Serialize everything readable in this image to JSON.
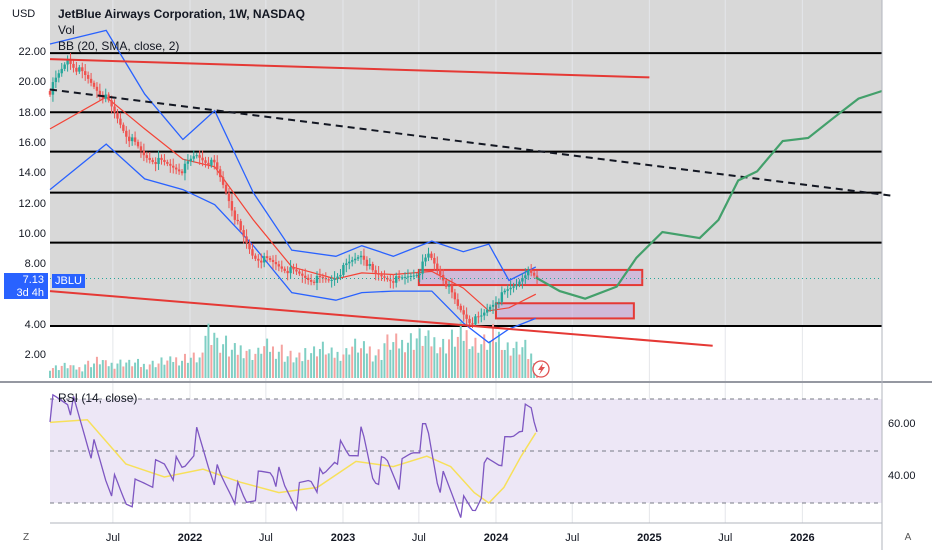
{
  "header": {
    "title": "JetBlue Airways Corporation, 1W, NASDAQ",
    "indicator_vol": "Vol",
    "indicator_bb": "BB (20, SMA, close, 2)",
    "rsi_label": "RSI (14, close)"
  },
  "currency": "USD",
  "price_tag": {
    "price": "7.13",
    "symbol": "JBLU",
    "countdown": "3d 4h"
  },
  "corners": {
    "bottom_left": "Z",
    "bottom_right": "A"
  },
  "colors": {
    "price_panel_bg": "#d8d8d8",
    "candle_up": "#26a69a",
    "candle_down": "#ef5350",
    "bollinger": "#2962ff",
    "sma": "#f44336",
    "rsi_line": "#7e57c2",
    "rsi_ma": "#f7e05a",
    "projection": "#43a06b",
    "trendline": "#e53935",
    "accent": "#2962ff"
  },
  "chart_data": [
    {
      "type": "candlestick",
      "title": "JetBlue Airways Corporation, 1W, NASDAQ",
      "ylabel": "USD",
      "y_ticks": [
        "22.00",
        "20.00",
        "18.00",
        "16.00",
        "14.00",
        "12.00",
        "10.00",
        "8.00",
        "4.00",
        "2.00"
      ],
      "x_ticks": [
        "Jul",
        "2022",
        "Jul",
        "2023",
        "Jul",
        "2024",
        "Jul",
        "2025",
        "Jul",
        "2026"
      ],
      "ylim": [
        0.4,
        23.5
      ],
      "overlays": [
        "Bollinger Bands (20, SMA, 2)",
        "Volume"
      ],
      "horizontal_levels": [
        22.0,
        18.1,
        15.5,
        12.8,
        9.5,
        4.0
      ],
      "last_price": 7.13,
      "close_path": [
        [
          "2021-02-01",
          19.5
        ],
        [
          "2021-03-15",
          21.6
        ],
        [
          "2021-05-01",
          20.3
        ],
        [
          "2021-06-15",
          19.0
        ],
        [
          "2021-08-01",
          16.7
        ],
        [
          "2021-09-15",
          15.2
        ],
        [
          "2021-11-01",
          14.7
        ],
        [
          "2021-12-15",
          14.3
        ],
        [
          "2022-01-15",
          15.3
        ],
        [
          "2022-03-01",
          14.6
        ],
        [
          "2022-04-01",
          12.6
        ],
        [
          "2022-05-01",
          10.2
        ],
        [
          "2022-06-01",
          8.6
        ],
        [
          "2022-07-15",
          8.2
        ],
        [
          "2022-09-01",
          7.6
        ],
        [
          "2022-10-15",
          7.1
        ],
        [
          "2022-12-01",
          7.0
        ],
        [
          "2023-01-15",
          8.1
        ],
        [
          "2023-02-15",
          8.8
        ],
        [
          "2023-03-15",
          7.4
        ],
        [
          "2023-04-15",
          7.2
        ],
        [
          "2023-05-15",
          7.0
        ],
        [
          "2023-07-01",
          7.6
        ],
        [
          "2023-07-25",
          8.7
        ],
        [
          "2023-09-01",
          7.0
        ],
        [
          "2023-10-01",
          5.3
        ],
        [
          "2023-11-01",
          4.3
        ],
        [
          "2023-11-25",
          4.5
        ],
        [
          "2023-12-20",
          5.4
        ],
        [
          "2024-01-20",
          6.1
        ],
        [
          "2024-02-20",
          6.8
        ],
        [
          "2024-03-10",
          7.6
        ],
        [
          "2024-04-05",
          7.13
        ]
      ],
      "bollinger": {
        "upper": [
          [
            "2021-02-01",
            22.6
          ],
          [
            "2021-06-15",
            23.5
          ],
          [
            "2021-09-15",
            19.3
          ],
          [
            "2021-12-15",
            16.3
          ],
          [
            "2022-03-01",
            18.2
          ],
          [
            "2022-06-01",
            12.8
          ],
          [
            "2022-09-01",
            9.0
          ],
          [
            "2022-12-15",
            8.6
          ],
          [
            "2023-02-15",
            9.3
          ],
          [
            "2023-05-01",
            8.6
          ],
          [
            "2023-08-01",
            9.6
          ],
          [
            "2023-10-15",
            8.9
          ],
          [
            "2023-12-15",
            9.4
          ],
          [
            "2024-02-01",
            7.0
          ],
          [
            "2024-04-05",
            7.9
          ]
        ],
        "lower": [
          [
            "2021-02-01",
            13.0
          ],
          [
            "2021-06-15",
            16.0
          ],
          [
            "2021-09-15",
            13.7
          ],
          [
            "2021-12-15",
            13.0
          ],
          [
            "2022-03-01",
            12.0
          ],
          [
            "2022-06-01",
            9.3
          ],
          [
            "2022-09-01",
            6.2
          ],
          [
            "2022-12-15",
            5.7
          ],
          [
            "2023-02-15",
            6.2
          ],
          [
            "2023-05-01",
            6.3
          ],
          [
            "2023-08-01",
            6.3
          ],
          [
            "2023-10-15",
            4.2
          ],
          [
            "2023-12-15",
            2.9
          ],
          [
            "2024-02-01",
            3.8
          ],
          [
            "2024-04-05",
            4.5
          ]
        ],
        "basis": [
          [
            "2021-02-01",
            17.0
          ],
          [
            "2021-06-15",
            19.1
          ],
          [
            "2021-09-15",
            17.0
          ],
          [
            "2021-12-15",
            15.0
          ],
          [
            "2022-03-01",
            14.5
          ],
          [
            "2022-06-01",
            11.0
          ],
          [
            "2022-09-01",
            7.9
          ],
          [
            "2022-12-15",
            7.1
          ],
          [
            "2023-02-15",
            7.5
          ],
          [
            "2023-05-01",
            7.4
          ],
          [
            "2023-08-01",
            7.6
          ],
          [
            "2023-10-15",
            6.5
          ],
          [
            "2023-12-15",
            5.0
          ],
          [
            "2024-02-01",
            5.2
          ],
          [
            "2024-04-05",
            6.1
          ]
        ]
      },
      "trendlines": [
        {
          "style": "solid",
          "color": "#e53935",
          "from": [
            "2021-02-01",
            21.6
          ],
          "to": [
            "2025-01-01",
            20.4
          ]
        },
        {
          "style": "dashed",
          "color": "#131722",
          "from": [
            "2021-02-01",
            19.6
          ],
          "to": [
            "2026-08-01",
            12.6
          ]
        },
        {
          "style": "solid",
          "color": "#e53935",
          "from": [
            "2021-02-01",
            6.3
          ],
          "to": [
            "2025-06-01",
            2.7
          ]
        }
      ],
      "zones": [
        {
          "from": [
            "2023-07-01",
            7.7
          ],
          "to": [
            "2024-12-15",
            6.7
          ]
        },
        {
          "from": [
            "2024-01-01",
            5.5
          ],
          "to": [
            "2024-11-25",
            4.5
          ]
        }
      ],
      "projection_path": [
        [
          "2024-04-05",
          7.2
        ],
        [
          "2024-06-01",
          6.3
        ],
        [
          "2024-08-01",
          5.8
        ],
        [
          "2024-10-15",
          6.6
        ],
        [
          "2024-12-01",
          8.5
        ],
        [
          "2025-02-01",
          10.2
        ],
        [
          "2025-05-01",
          9.8
        ],
        [
          "2025-06-15",
          11.0
        ],
        [
          "2025-08-01",
          13.6
        ],
        [
          "2025-09-15",
          14.2
        ],
        [
          "2025-11-15",
          16.2
        ],
        [
          "2026-01-15",
          16.4
        ],
        [
          "2026-03-15",
          17.7
        ],
        [
          "2026-05-15",
          19.0
        ],
        [
          "2026-07-10",
          19.5
        ]
      ],
      "volume_relative": [
        0.22,
        0.25,
        0.2,
        0.3,
        0.35,
        0.28,
        0.32,
        0.3,
        0.26,
        0.3,
        0.34,
        0.38,
        0.42,
        0.4,
        1.0,
        0.7,
        0.55,
        0.6,
        0.5,
        0.62,
        0.58,
        0.45,
        0.4,
        0.55,
        0.6,
        0.48,
        0.52,
        0.65,
        0.58,
        0.5,
        0.72,
        0.7,
        0.78,
        0.82,
        0.75,
        0.68,
        0.8,
        0.88,
        0.7,
        0.72,
        0.85,
        0.62,
        0.6,
        0.45,
        0.3
      ]
    },
    {
      "type": "line",
      "title": "RSI (14, close)",
      "y_ticks": [
        "60.00",
        "40.00"
      ],
      "ylim": [
        25,
        75
      ],
      "levels": [
        70,
        50,
        30
      ],
      "rsi": [
        [
          "2021-02-01",
          66
        ],
        [
          "2021-03-15",
          71
        ],
        [
          "2021-05-01",
          55
        ],
        [
          "2021-06-15",
          40
        ],
        [
          "2021-08-01",
          31
        ],
        [
          "2021-09-15",
          38
        ],
        [
          "2021-11-01",
          45
        ],
        [
          "2021-12-15",
          42
        ],
        [
          "2022-01-15",
          55
        ],
        [
          "2022-02-15",
          45
        ],
        [
          "2022-03-15",
          38
        ],
        [
          "2022-04-15",
          35
        ],
        [
          "2022-05-15",
          30
        ],
        [
          "2022-06-15",
          38
        ],
        [
          "2022-07-15",
          44
        ],
        [
          "2022-08-15",
          35
        ],
        [
          "2022-09-15",
          32
        ],
        [
          "2022-10-15",
          40
        ],
        [
          "2022-11-15",
          38
        ],
        [
          "2022-12-15",
          50
        ],
        [
          "2023-01-15",
          48
        ],
        [
          "2023-02-15",
          55
        ],
        [
          "2023-03-15",
          40
        ],
        [
          "2023-04-15",
          45
        ],
        [
          "2023-05-15",
          40
        ],
        [
          "2023-06-15",
          50
        ],
        [
          "2023-07-20",
          58
        ],
        [
          "2023-08-15",
          40
        ],
        [
          "2023-09-15",
          34
        ],
        [
          "2023-10-15",
          28
        ],
        [
          "2023-11-10",
          27
        ],
        [
          "2023-12-10",
          44
        ],
        [
          "2024-01-10",
          48
        ],
        [
          "2024-02-10",
          55
        ],
        [
          "2024-03-01",
          62
        ],
        [
          "2024-03-25",
          65
        ],
        [
          "2024-04-05",
          59
        ]
      ],
      "rsi_ma": [
        [
          "2021-02-01",
          61
        ],
        [
          "2021-05-01",
          62
        ],
        [
          "2021-08-01",
          45
        ],
        [
          "2021-11-01",
          40
        ],
        [
          "2022-02-01",
          43
        ],
        [
          "2022-05-01",
          38
        ],
        [
          "2022-08-01",
          34
        ],
        [
          "2022-11-01",
          36
        ],
        [
          "2023-02-01",
          46
        ],
        [
          "2023-05-01",
          44
        ],
        [
          "2023-07-20",
          48
        ],
        [
          "2023-09-15",
          44
        ],
        [
          "2023-11-10",
          34
        ],
        [
          "2023-12-15",
          30
        ],
        [
          "2024-01-20",
          36
        ],
        [
          "2024-03-01",
          48
        ],
        [
          "2024-04-05",
          57
        ]
      ]
    }
  ]
}
